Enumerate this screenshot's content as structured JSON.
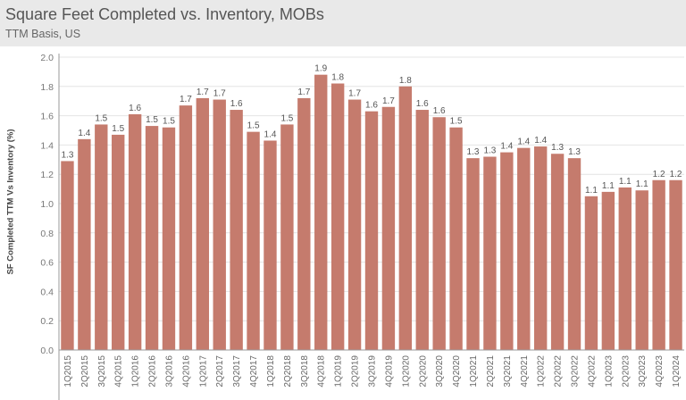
{
  "header": {
    "title": "Square Feet Completed vs. Inventory, MOBs",
    "subtitle": "TTM Basis, US"
  },
  "colors": {
    "bar": "#c57b6d",
    "header_bg": "#e9e9e9",
    "gridline": "#e4e4e4",
    "axis": "#9a9a9a"
  },
  "chart_data": {
    "type": "bar",
    "title": "Square Feet Completed vs. Inventory, MOBs",
    "subtitle": "TTM Basis, US",
    "ylabel": "SF Completed TTM Vs Inventory (%)",
    "xlabel": "",
    "ylim": [
      0,
      2.0
    ],
    "yticks": [
      "0.0",
      "0.2",
      "0.4",
      "0.6",
      "0.8",
      "1.0",
      "1.2",
      "1.4",
      "1.6",
      "1.8",
      "2.0"
    ],
    "grid": true,
    "categories": [
      "1Q2015",
      "2Q2015",
      "3Q2015",
      "4Q2015",
      "1Q2016",
      "2Q2016",
      "3Q2016",
      "4Q2016",
      "1Q2017",
      "2Q2017",
      "3Q2017",
      "4Q2017",
      "1Q2018",
      "2Q2018",
      "3Q2018",
      "4Q2018",
      "1Q2019",
      "2Q2019",
      "3Q2019",
      "4Q2019",
      "1Q2020",
      "2Q2020",
      "3Q2020",
      "4Q2020",
      "1Q2021",
      "2Q2021",
      "3Q2021",
      "4Q2021",
      "1Q2022",
      "2Q2022",
      "3Q2022",
      "4Q2022",
      "1Q2023",
      "2Q2023",
      "3Q2023",
      "4Q2023",
      "1Q2024"
    ],
    "values": [
      1.29,
      1.44,
      1.54,
      1.47,
      1.61,
      1.53,
      1.52,
      1.67,
      1.72,
      1.71,
      1.64,
      1.49,
      1.43,
      1.54,
      1.72,
      1.88,
      1.82,
      1.71,
      1.63,
      1.66,
      1.8,
      1.64,
      1.59,
      1.52,
      1.31,
      1.32,
      1.35,
      1.38,
      1.39,
      1.34,
      1.31,
      1.05,
      1.08,
      1.11,
      1.09,
      1.16,
      1.16
    ],
    "data_labels": [
      "1.3",
      "1.4",
      "1.5",
      "1.5",
      "1.6",
      "1.5",
      "1.5",
      "1.7",
      "1.7",
      "1.7",
      "1.6",
      "1.5",
      "1.4",
      "1.5",
      "1.7",
      "1.9",
      "1.8",
      "1.7",
      "1.6",
      "1.7",
      "1.8",
      "1.6",
      "1.6",
      "1.5",
      "1.3",
      "1.3",
      "1.4",
      "1.4",
      "1.4",
      "1.3",
      "1.3",
      "1.1",
      "1.1",
      "1.1",
      "1.1",
      "1.2",
      "1.2"
    ]
  }
}
